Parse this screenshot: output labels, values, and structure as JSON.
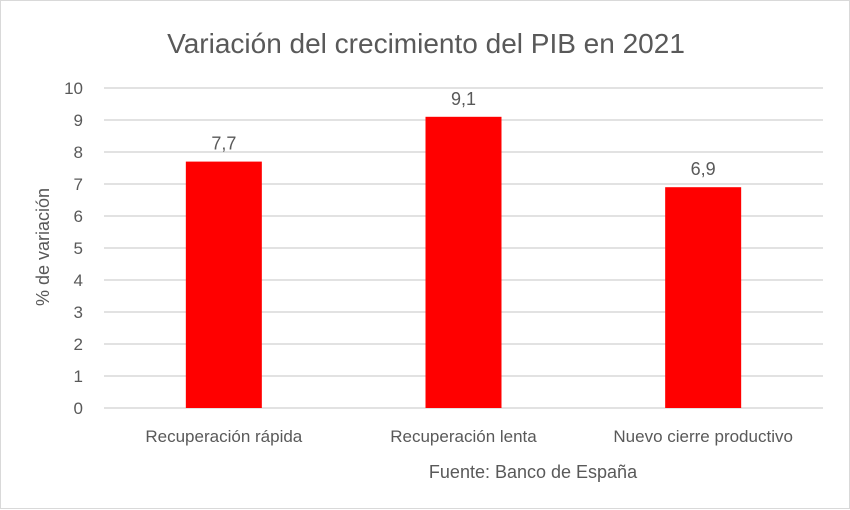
{
  "chart_data": {
    "type": "bar",
    "title": "Variación del crecimiento del PIB en 2021",
    "xlabel": "Fuente: Banco de España",
    "ylabel": "% de variación",
    "categories": [
      "Recuperación rápida",
      "Recuperación lenta",
      "Nuevo cierre productivo"
    ],
    "values": [
      7.7,
      9.1,
      6.9
    ],
    "data_labels": [
      "7,7",
      "9,1",
      "6,9"
    ],
    "ylim": [
      0,
      10
    ],
    "yticks": [
      "0",
      "1",
      "2",
      "3",
      "4",
      "5",
      "6",
      "7",
      "8",
      "9",
      "10"
    ],
    "grid": true,
    "legend": "none",
    "bar_color": "#ff0000"
  }
}
